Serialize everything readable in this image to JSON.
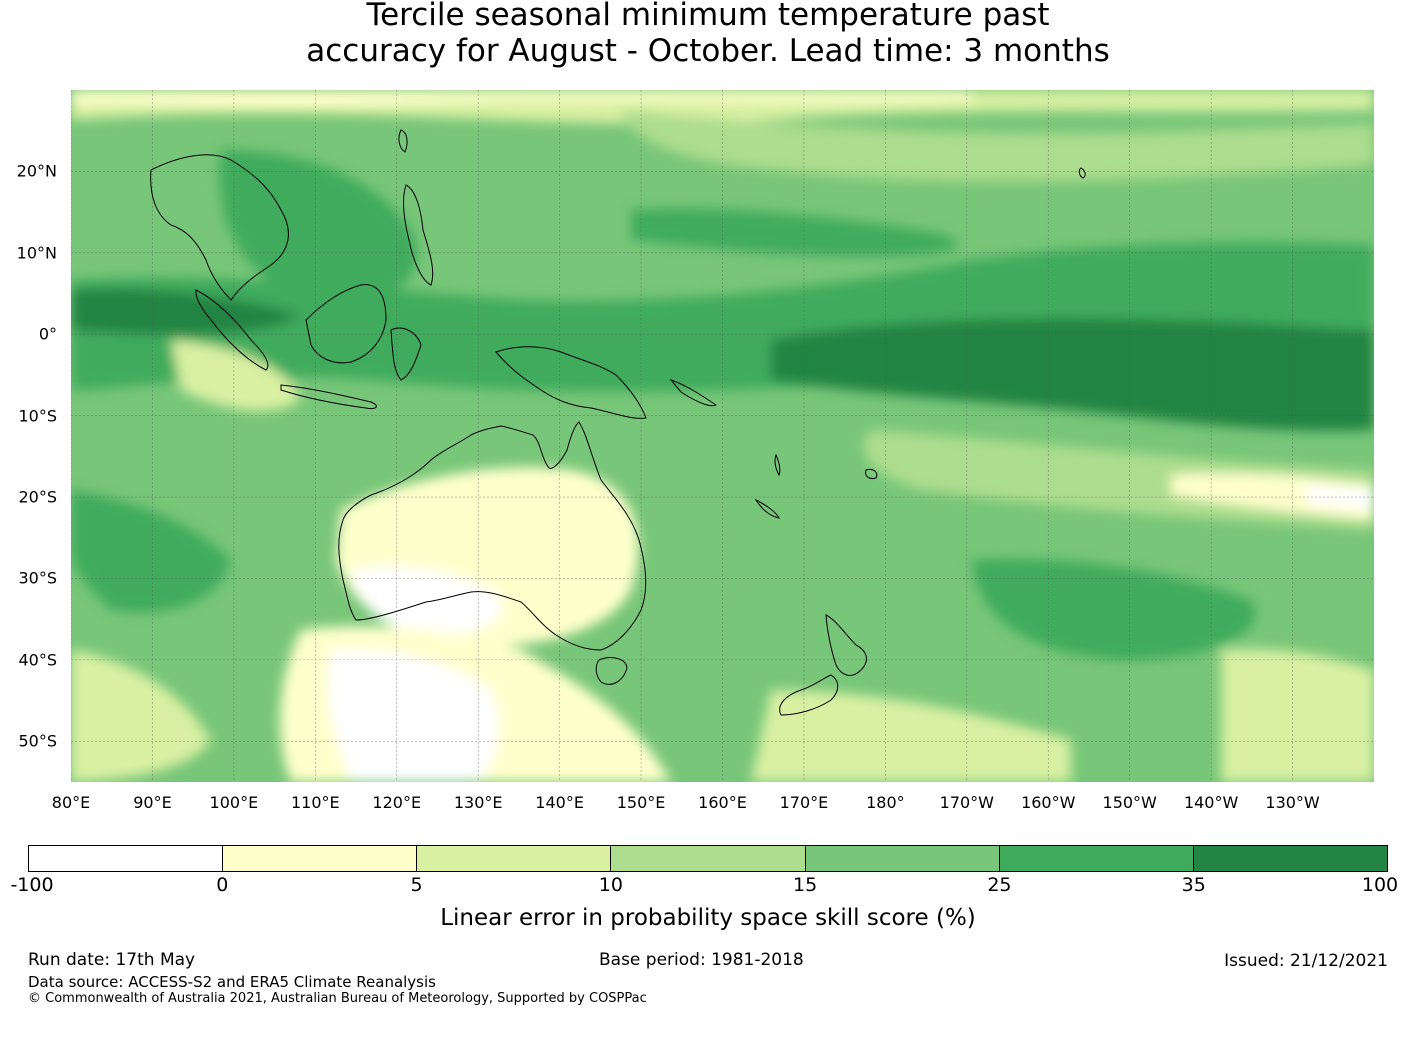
{
  "title": {
    "line1": "Tercile seasonal minimum temperature past",
    "line2": "accuracy for August - October. Lead time: 3 months"
  },
  "map": {
    "lat_labels": [
      "20°N",
      "10°N",
      "0°",
      "10°S",
      "20°S",
      "30°S",
      "40°S",
      "50°S"
    ],
    "lat_values": [
      20,
      10,
      0,
      -10,
      -20,
      -30,
      -40,
      -50
    ],
    "lat_range": [
      -55,
      30
    ],
    "lon_labels": [
      "80°E",
      "90°E",
      "100°E",
      "110°E",
      "120°E",
      "130°E",
      "140°E",
      "150°E",
      "160°E",
      "170°E",
      "180°",
      "170°W",
      "160°W",
      "150°W",
      "140°W",
      "130°W"
    ],
    "lon_values": [
      80,
      90,
      100,
      110,
      120,
      130,
      140,
      150,
      160,
      170,
      180,
      190,
      200,
      210,
      220,
      230
    ],
    "lon_range": [
      80,
      240
    ]
  },
  "colorbar": {
    "ticks": [
      "-100",
      "0",
      "5",
      "10",
      "15",
      "25",
      "35",
      "100"
    ],
    "colors": [
      "#ffffff",
      "#ffffcc",
      "#d9f0a3",
      "#addd8e",
      "#78c679",
      "#41ab5d",
      "#238443"
    ],
    "label": "Linear error in probability space skill score (%)"
  },
  "footer": {
    "run_date": "Run date: 17th May",
    "base_period": "Base period: 1981-2018",
    "issued": "Issued: 21/12/2021",
    "data_source": "Data source: ACCESS-S2 and ERA5 Climate Reanalysis",
    "copyright": "© Commonwealth of Australia 2021, Australian Bureau of Meteorology, Supported by COSPPac"
  }
}
